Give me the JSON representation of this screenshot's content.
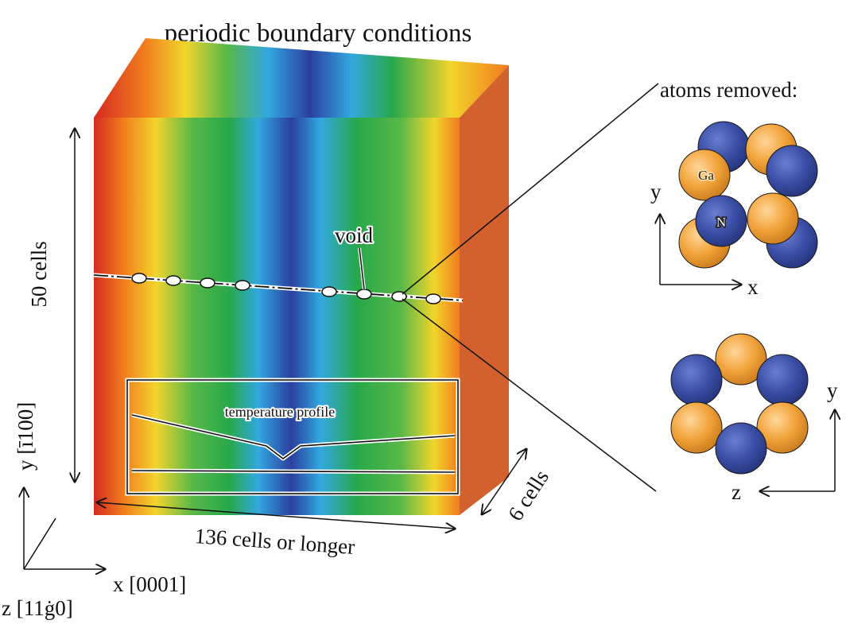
{
  "title": "periodic boundary conditions",
  "labels": {
    "height_cells": "50 cells",
    "length_cells": "136 cells or longer",
    "depth_cells": "6 cells",
    "void": "void",
    "temperature_profile": "temperature profile",
    "atoms_removed": "atoms removed:"
  },
  "axes_main": {
    "x": "x [0001]",
    "y": "y [ī100]",
    "z": "z [11ġ0]"
  },
  "atoms": {
    "ga_label": "Ga",
    "n_label": "N",
    "top_axes": {
      "x": "x",
      "y": "y"
    },
    "bottom_axes": {
      "y": "y",
      "z": "z"
    }
  },
  "colors": {
    "ga": "#f2a33a",
    "n": "#3b4fa8",
    "side_face": "#d2612e",
    "gradient_stops": [
      "#d42a22",
      "#f07b1d",
      "#f2d52c",
      "#58b848",
      "#28a84a",
      "#32a8e0",
      "#2b3f9e",
      "#32a8e0",
      "#28a84a",
      "#58b848",
      "#f2d52c",
      "#f07b1d"
    ]
  }
}
